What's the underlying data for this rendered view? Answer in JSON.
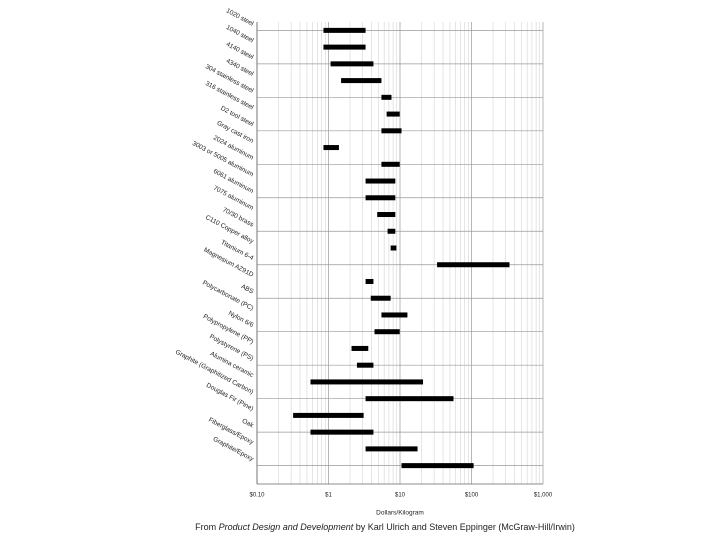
{
  "chart_data": {
    "type": "range_bar",
    "categories": [
      "1020 steel",
      "1040 steel",
      "4140 steel",
      "4340 steel",
      "304 stainless steel",
      "316 stainless steel",
      "D2 tool steel",
      "Gray cast iron",
      "2024 aluminum",
      "3003 or 5005 aluminum",
      "6061 aluminum",
      "7075 aluminum",
      "70/30 brass",
      "C110 Copper alloy",
      "Titanium 6-4",
      "Magnesium AZ91D",
      "ABS",
      "Polycarbonate (PC)",
      "Nylon 6/6",
      "Polypropylene (PP)",
      "Polystyrene (PS)",
      "Alumina ceramic",
      "Graphite (Graphitized Carbon)",
      "Douglas Fir (Pine)",
      "Oak",
      "Fiberglass/Epoxy",
      "Graphite/Epoxy"
    ],
    "low": [
      0.85,
      0.85,
      1.07,
      1.5,
      5.5,
      6.5,
      5.5,
      0.85,
      5.5,
      3.3,
      3.3,
      4.8,
      6.7,
      7.4,
      33,
      3.3,
      3.9,
      5.5,
      4.4,
      2.1,
      2.5,
      0.56,
      3.3,
      0.32,
      0.56,
      3.3,
      10.5
    ],
    "high": [
      3.3,
      3.3,
      4.25,
      5.5,
      7.6,
      9.9,
      10.5,
      1.4,
      9.9,
      8.6,
      8.6,
      8.6,
      8.6,
      8.9,
      340,
      4.25,
      7.4,
      12.7,
      9.9,
      3.6,
      4.25,
      21,
      56,
      3.1,
      4.25,
      17.6,
      107
    ],
    "color": "#000000",
    "x_label": "Dollars/Kilogram",
    "log_x": true,
    "grid": true,
    "minor_grid": true,
    "xlim": [
      0.1,
      1000
    ],
    "xticks": [
      {
        "value": 0.1,
        "label": "$0.10"
      },
      {
        "value": 1,
        "label": "$1"
      },
      {
        "value": 10,
        "label": "$10"
      },
      {
        "value": 100,
        "label": "$100"
      },
      {
        "value": 1000,
        "label": "$1,000"
      }
    ],
    "source": {
      "prefix": "From ",
      "book": "Product Design and Development",
      "suffix": " by Karl Ulrich and Steven Eppinger (McGraw-Hill/Irwin)"
    }
  }
}
